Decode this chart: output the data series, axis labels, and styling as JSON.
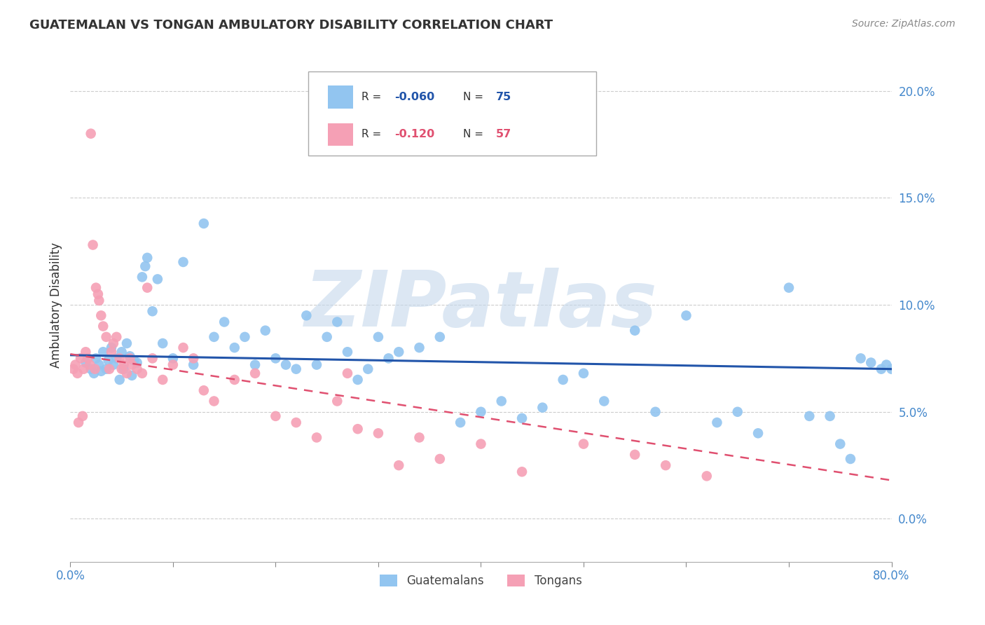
{
  "title": "GUATEMALAN VS TONGAN AMBULATORY DISABILITY CORRELATION CHART",
  "source": "Source: ZipAtlas.com",
  "ylabel": "Ambulatory Disability",
  "xlim": [
    0.0,
    80.0
  ],
  "ylim": [
    -2.0,
    22.0
  ],
  "ylabel_ticks": [
    0.0,
    5.0,
    10.0,
    15.0,
    20.0
  ],
  "xtick_positions": [
    0.0,
    10.0,
    20.0,
    30.0,
    40.0,
    50.0,
    60.0,
    70.0,
    80.0
  ],
  "guatemalan_R": "-0.060",
  "guatemalan_N": "75",
  "tongan_R": "-0.120",
  "tongan_N": "57",
  "guatemalan_color": "#92C5F0",
  "guatemalan_line_color": "#2255AA",
  "tongan_color": "#F5A0B5",
  "tongan_line_color": "#E05070",
  "watermark_text": "ZIPatlas",
  "watermark_color": "#C5D8EC",
  "background_color": "#FFFFFF",
  "grid_color": "#CCCCCC",
  "title_color": "#333333",
  "axis_label_color": "#4488CC",
  "guat_trend_x0": 0.0,
  "guat_trend_y0": 7.65,
  "guat_trend_x1": 80.0,
  "guat_trend_y1": 7.0,
  "tong_trend_x0": 0.0,
  "tong_trend_y0": 7.7,
  "tong_trend_x1": 80.0,
  "tong_trend_y1": 1.8,
  "guatemalan_x": [
    1.5,
    2.0,
    2.3,
    2.5,
    2.8,
    3.0,
    3.2,
    3.5,
    3.7,
    4.0,
    4.2,
    4.5,
    4.8,
    5.0,
    5.2,
    5.5,
    5.8,
    6.0,
    6.2,
    6.5,
    7.0,
    7.3,
    7.5,
    8.0,
    8.5,
    9.0,
    10.0,
    11.0,
    12.0,
    13.0,
    14.0,
    15.0,
    16.0,
    17.0,
    18.0,
    19.0,
    20.0,
    21.0,
    22.0,
    23.0,
    24.0,
    25.0,
    26.0,
    27.0,
    28.0,
    29.0,
    30.0,
    31.0,
    32.0,
    34.0,
    36.0,
    38.0,
    40.0,
    42.0,
    44.0,
    46.0,
    48.0,
    50.0,
    52.0,
    55.0,
    57.0,
    60.0,
    63.0,
    65.0,
    67.0,
    70.0,
    72.0,
    74.0,
    75.0,
    76.0,
    77.0,
    78.0,
    79.0,
    79.5,
    80.0
  ],
  "guatemalan_y": [
    7.3,
    7.0,
    6.8,
    7.5,
    7.2,
    6.9,
    7.8,
    7.0,
    7.4,
    8.0,
    7.2,
    7.5,
    6.5,
    7.8,
    7.0,
    8.2,
    7.6,
    6.7,
    7.4,
    7.3,
    11.3,
    11.8,
    12.2,
    9.7,
    11.2,
    8.2,
    7.5,
    12.0,
    7.2,
    13.8,
    8.5,
    9.2,
    8.0,
    8.5,
    7.2,
    8.8,
    7.5,
    7.2,
    7.0,
    9.5,
    7.2,
    8.5,
    9.2,
    7.8,
    6.5,
    7.0,
    8.5,
    7.5,
    7.8,
    8.0,
    8.5,
    4.5,
    5.0,
    5.5,
    4.7,
    5.2,
    6.5,
    6.8,
    5.5,
    8.8,
    5.0,
    9.5,
    4.5,
    5.0,
    4.0,
    10.8,
    4.8,
    4.8,
    3.5,
    2.8,
    7.5,
    7.3,
    7.0,
    7.2,
    7.0
  ],
  "tongan_x": [
    0.3,
    0.5,
    0.7,
    0.8,
    1.0,
    1.2,
    1.3,
    1.5,
    1.7,
    1.9,
    2.0,
    2.2,
    2.4,
    2.5,
    2.7,
    2.8,
    3.0,
    3.2,
    3.5,
    3.8,
    4.0,
    4.2,
    4.5,
    4.8,
    5.0,
    5.2,
    5.5,
    5.8,
    6.0,
    6.5,
    7.0,
    7.5,
    8.0,
    9.0,
    10.0,
    11.0,
    12.0,
    13.0,
    14.0,
    16.0,
    18.0,
    20.0,
    22.0,
    24.0,
    26.0,
    27.0,
    28.0,
    30.0,
    32.0,
    34.0,
    36.0,
    40.0,
    44.0,
    50.0,
    55.0,
    58.0,
    62.0
  ],
  "tongan_y": [
    7.0,
    7.2,
    6.8,
    4.5,
    7.5,
    4.8,
    7.0,
    7.8,
    7.5,
    7.2,
    18.0,
    12.8,
    7.0,
    10.8,
    10.5,
    10.2,
    9.5,
    9.0,
    8.5,
    7.0,
    7.8,
    8.2,
    8.5,
    7.5,
    7.0,
    7.2,
    6.8,
    7.5,
    7.2,
    7.0,
    6.8,
    10.8,
    7.5,
    6.5,
    7.2,
    8.0,
    7.5,
    6.0,
    5.5,
    6.5,
    6.8,
    4.8,
    4.5,
    3.8,
    5.5,
    6.8,
    4.2,
    4.0,
    2.5,
    3.8,
    2.8,
    3.5,
    2.2,
    3.5,
    3.0,
    2.5,
    2.0
  ]
}
